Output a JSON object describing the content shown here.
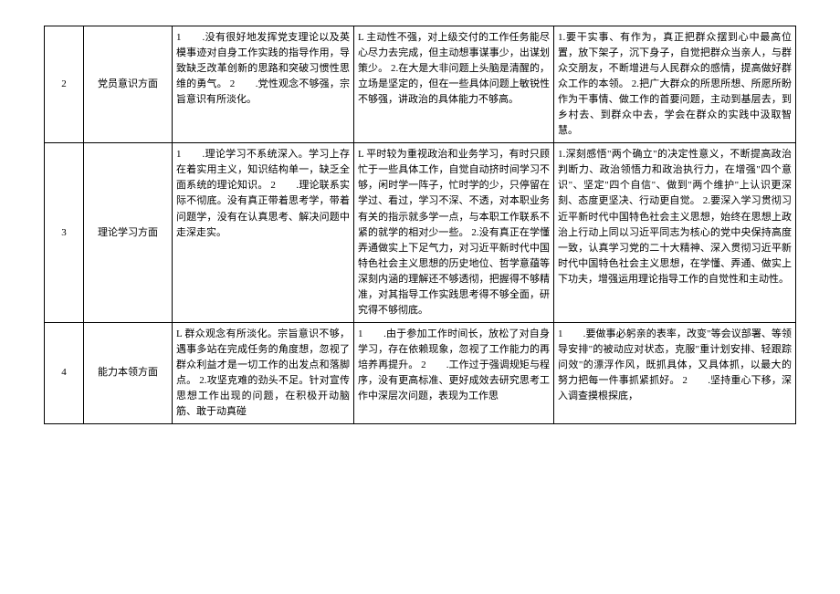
{
  "rows": [
    {
      "num": "2",
      "cat": "党员意识方面",
      "c3": "1　　.没有很好地发挥党支理论以及英模事迹对自身工作实践的指导作用，导致缺乏改革创新的思路和突破习惯性思维的勇气。\n2　　.党性观念不够强，宗旨意识有所淡化。",
      "c4": "L 主动性不强，对上级交付的工作任务能尽心尽力去完成，但主动想事谋事少，出谋划策少。\n2.在大是大非问题上头脑是清醒的，立场是坚定的，但在一些具体问题上敏锐性不够强，讲政治的具体能力不够高。",
      "c5": "1.要干实事、有作为，真正把群众摆到心中最高位置，放下架子，沉下身子，自觉把群众当亲人，与群众交朋友，不断增进与人民群众的感情，提高做好群众工作的本领。\n2.把广大群众的所思所想、所愿所盼作为干事情、做工作的首要问题，主动到基层去，到乡村去、到群众中去，学会在群众的实践中汲取智慧。"
    },
    {
      "num": "3",
      "cat": "理论学习方面",
      "c3": "1　　.理论学习不系统深入。学习上存在着实用主义，知识结构单一，缺乏全面系统的理论知识。\n2　　.理论联系实际不彻底。没有真正带着思考学，带着问题学，没有在认真思考、解决问题中走深走实。",
      "c4": "L 平时较为重视政治和业务学习，有时只顾忙于一些具体工作，自觉自动挤时间学习不够，闲时学一阵子，忙时学的少，只停留在学过、看过，学习不深、不透，对本职业务有关的指示就多学一点，与本职工作联系不紧的就学的相对少一些。\n2.没有真正在学懂弄通做实上下足气力，对习近平新时代中国特色社会主义思想的历史地位、哲学意蕴等深刻内涵的理解还不够透彻，把握得不够精准，对其指导工作实践思考得不够全面，研究得不够彻底。",
      "c5": "1.深刻感悟\"两个确立\"的决定性意义，不断提高政治判断力、政治领悟力和政治执行力，在增强\"四个意识\"、坚定\"四个自信\"、做到\"两个维护\"上认识更深刻、态度更坚决、行动更自觉。\n2.要深入学习贯彻习近平新时代中国特色社会主义思想，始终在思想上政治上行动上同以习近平同志为核心的党中央保持高度一致，认真学习党的二十大精神、深入贯彻习近平新时代中国特色社会主义思想，在学懂、弄通、做实上下功夫，增强运用理论指导工作的自觉性和主动性。"
    },
    {
      "num": "4",
      "cat": "能力本领方面",
      "c3": "L 群众观念有所淡化。宗旨意识不够，遇事多站在完成任务的角度想，忽视了群众利益才是一切工作的出发点和落脚点。\n2.攻坚克难的劲头不足。针对宣传思想工作出现的问题，在积极开动脑筋、敢于动真碰",
      "c4": "1　　.由于参加工作时间长，放松了对自身学习，存在依赖现象，忽视了工作能力的再培养再提升。\n2　　.工作过于强调规矩与程序，没有更高标准、更好成效去研究思考工作中深层次问题，表现为工作思",
      "c5": "1　　.要做事必躬亲的表率，改变\"等会议部署、等领导安排\"的被动应对状态，克服\"重计划安排、轻跟踪问效\"的漂浮作风，既抓具体，又具体抓，以最大的努力把每一件事抓紧抓好。\n2　　.坚持重心下移，深入调查摸根探底，"
    }
  ]
}
